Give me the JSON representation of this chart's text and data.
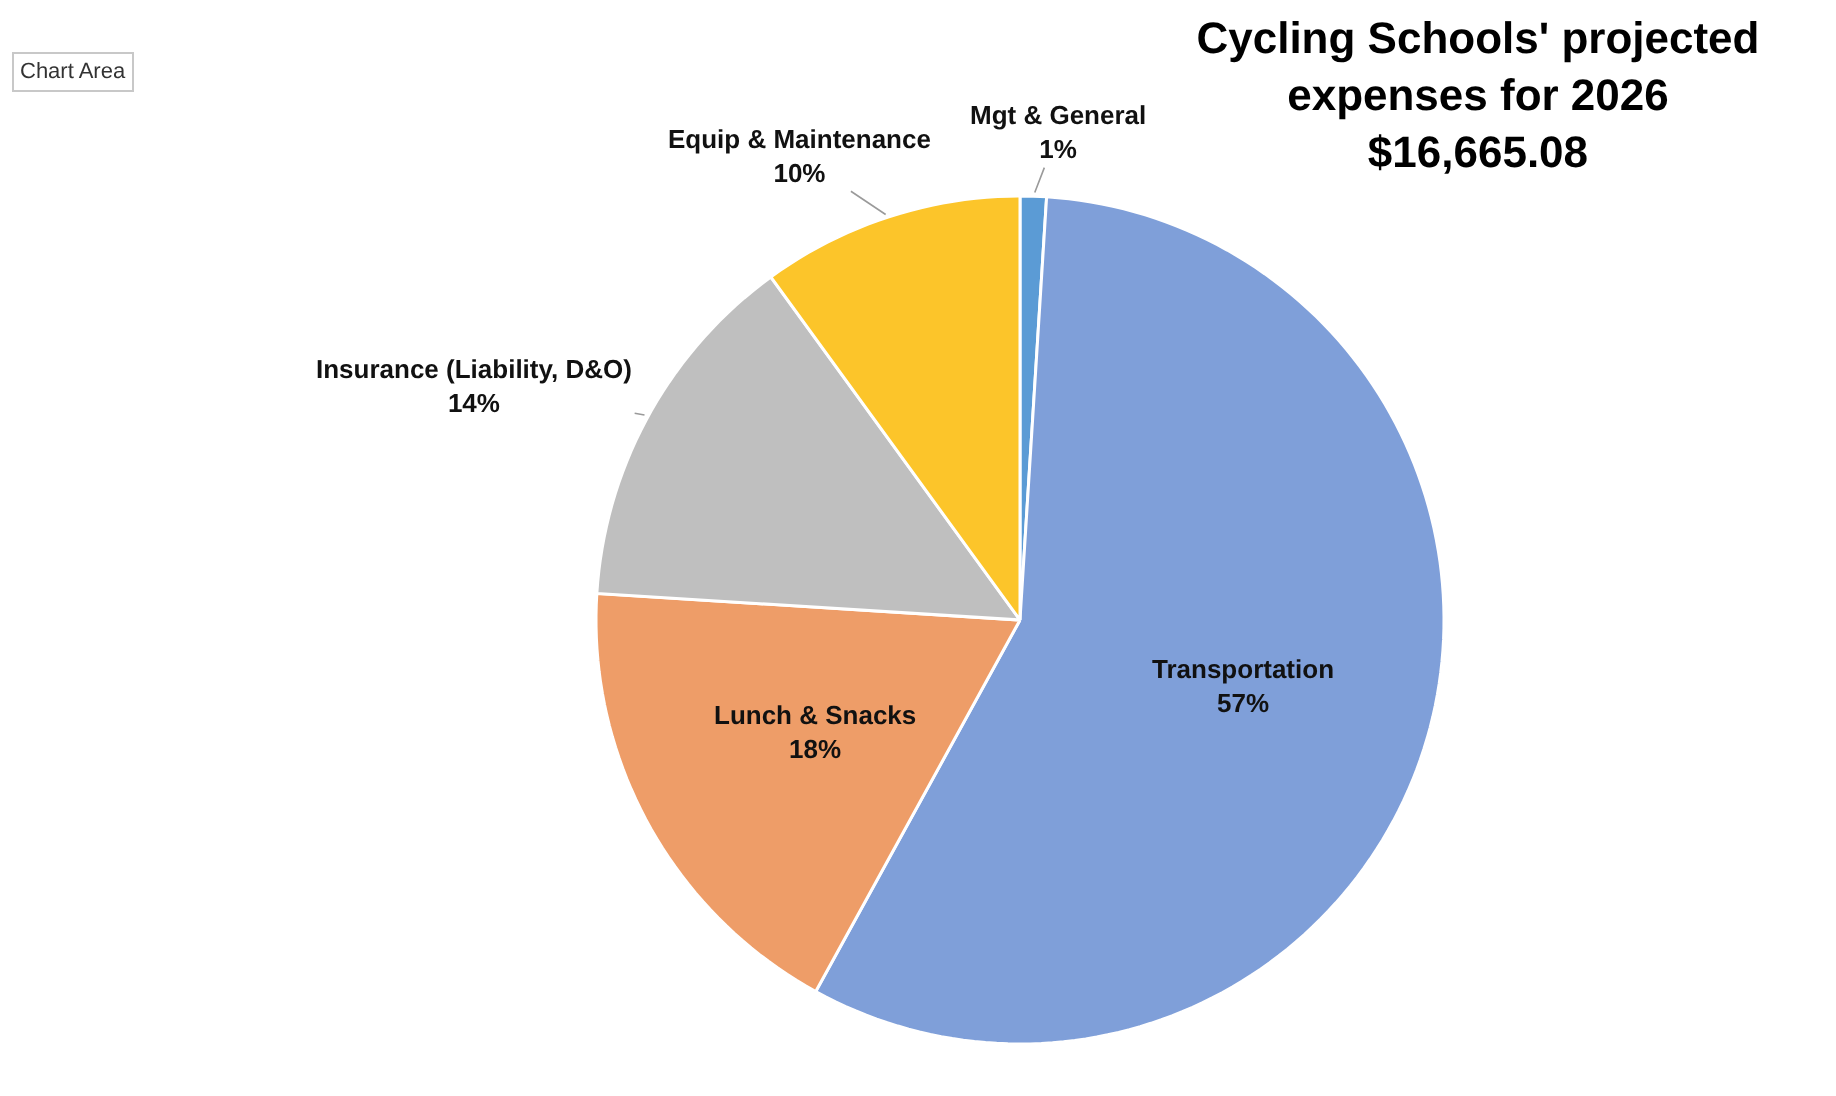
{
  "chart_data": {
    "type": "pie",
    "title": "Cycling Schools' projected\nexpenses for 2026\n$16,665.08",
    "categories": [
      "Mgt & General",
      "Transportation",
      "Lunch & Snacks",
      "Insurance (Liability, D&O)",
      "Equip & Maintenance"
    ],
    "values": [
      1,
      57,
      18,
      14,
      10
    ],
    "value_labels": [
      "1%",
      "57%",
      "18%",
      "14%",
      "10%"
    ],
    "colors": [
      "#5b9bd5",
      "#7f9fd9",
      "#ee9d68",
      "#bfbfbf",
      "#fcc52a"
    ],
    "annotations": [
      "Chart Area"
    ]
  }
}
